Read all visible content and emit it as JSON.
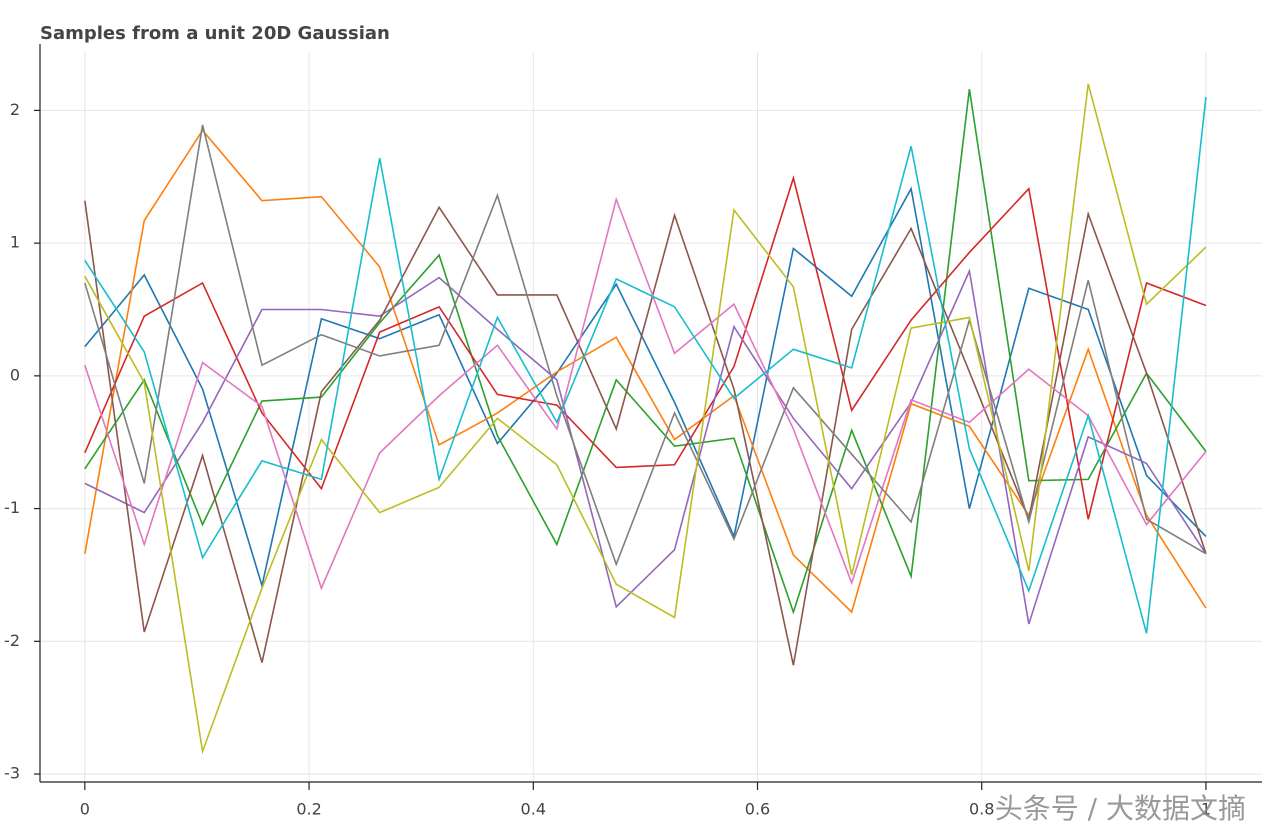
{
  "chart_data": {
    "type": "line",
    "title": "Samples from a unit 20D Gaussian",
    "x": [
      0,
      0.053,
      0.105,
      0.158,
      0.211,
      0.263,
      0.316,
      0.368,
      0.421,
      0.474,
      0.526,
      0.579,
      0.632,
      0.684,
      0.737,
      0.789,
      0.842,
      0.895,
      0.947,
      1
    ],
    "xlim": [
      -0.04,
      1.05
    ],
    "xticks": [
      0,
      0.2,
      0.4,
      0.6,
      0.8,
      1
    ],
    "ylim": [
      -3.06,
      2.44
    ],
    "yticks": [
      -3,
      -2,
      -1,
      0,
      1,
      2
    ],
    "grid": true,
    "series": [
      {
        "color": "#1f77b4",
        "values": [
          0.22,
          0.76,
          -0.1,
          -1.58,
          0.43,
          0.28,
          0.46,
          -0.51,
          0.02,
          0.69,
          -0.2,
          -1.21,
          0.96,
          0.6,
          1.41,
          -1.0,
          0.66,
          0.5,
          -0.75,
          -1.21
        ]
      },
      {
        "color": "#ff7f0e",
        "values": [
          -1.34,
          1.17,
          1.85,
          1.32,
          1.35,
          0.82,
          -0.52,
          -0.28,
          0.03,
          0.29,
          -0.48,
          -0.15,
          -1.35,
          -1.78,
          -0.21,
          -0.38,
          -1.05,
          0.2,
          -1.05,
          -1.75
        ]
      },
      {
        "color": "#2ca02c",
        "values": [
          -0.7,
          -0.03,
          -1.12,
          -0.19,
          -0.16,
          0.4,
          0.91,
          -0.45,
          -1.27,
          -0.03,
          -0.53,
          -0.47,
          -1.78,
          -0.41,
          -1.51,
          2.16,
          -0.79,
          -0.78,
          0.02,
          -0.57
        ]
      },
      {
        "color": "#d62728",
        "values": [
          -0.58,
          0.45,
          0.7,
          -0.28,
          -0.85,
          0.33,
          0.52,
          -0.14,
          -0.22,
          -0.69,
          -0.67,
          0.07,
          1.49,
          -0.26,
          0.42,
          0.93,
          1.41,
          -1.08,
          0.7,
          0.53
        ]
      },
      {
        "color": "#9467bd",
        "values": [
          -0.81,
          -1.03,
          -0.35,
          0.5,
          0.5,
          0.45,
          0.74,
          0.35,
          -0.03,
          -1.74,
          -1.31,
          0.37,
          -0.32,
          -0.85,
          -0.2,
          0.79,
          -1.87,
          -0.46,
          -0.66,
          -1.34
        ]
      },
      {
        "color": "#8c564b",
        "values": [
          1.32,
          -1.93,
          -0.6,
          -2.16,
          -0.12,
          0.42,
          1.27,
          0.61,
          0.61,
          -0.4,
          1.21,
          -0.1,
          -2.18,
          0.35,
          1.11,
          0.03,
          -1.08,
          1.22,
          0.02,
          -1.34
        ]
      },
      {
        "color": "#e377c2",
        "values": [
          0.08,
          -1.27,
          0.1,
          -0.23,
          -1.6,
          -0.58,
          -0.15,
          0.23,
          -0.4,
          1.33,
          0.17,
          0.54,
          -0.4,
          -1.56,
          -0.18,
          -0.35,
          0.05,
          -0.3,
          -1.12,
          -0.57
        ]
      },
      {
        "color": "#7f7f7f",
        "values": [
          0.7,
          -0.81,
          1.89,
          0.08,
          0.31,
          0.15,
          0.23,
          1.36,
          -0.15,
          -1.42,
          -0.28,
          -1.23,
          -0.09,
          -0.59,
          -1.1,
          0.42,
          -1.1,
          0.72,
          -1.08,
          -1.34
        ]
      },
      {
        "color": "#bcbd22",
        "values": [
          0.75,
          -0.05,
          -2.83,
          -1.6,
          -0.48,
          -1.03,
          -0.84,
          -0.32,
          -0.67,
          -1.57,
          -1.82,
          1.25,
          0.67,
          -1.5,
          0.36,
          0.44,
          -1.47,
          2.2,
          0.54,
          0.97
        ]
      },
      {
        "color": "#17becf",
        "values": [
          0.87,
          0.18,
          -1.37,
          -0.64,
          -0.78,
          1.64,
          -0.78,
          0.44,
          -0.35,
          0.73,
          0.52,
          -0.17,
          0.2,
          0.06,
          1.73,
          -0.55,
          -1.62,
          -0.3,
          -1.94,
          2.1
        ]
      }
    ]
  },
  "watermark": "头条号 / 大数据文摘"
}
